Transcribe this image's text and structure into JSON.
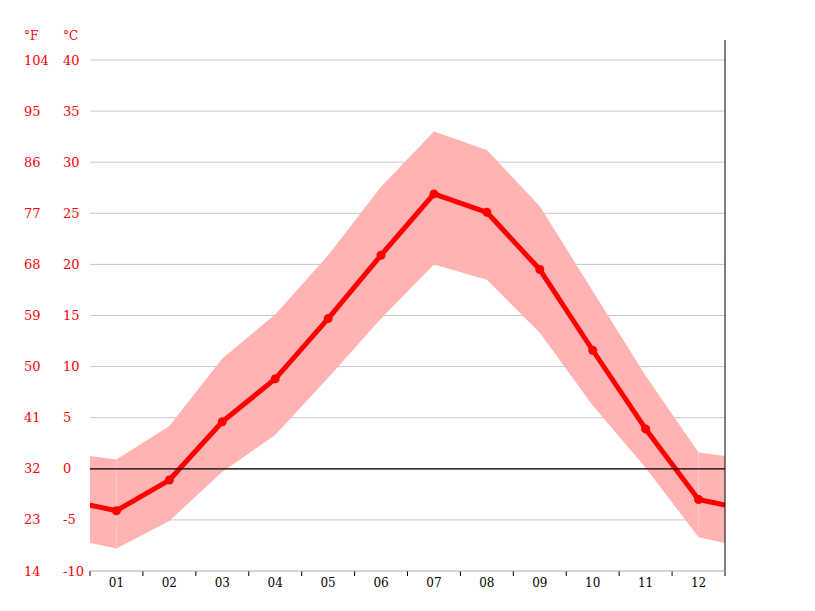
{
  "chart_data": {
    "type": "line",
    "y_label": "°C",
    "y2_label": "°F",
    "categories": [
      "01",
      "02",
      "03",
      "04",
      "05",
      "06",
      "07",
      "08",
      "09",
      "10",
      "11",
      "12"
    ],
    "series": [
      {
        "type": "line",
        "color": "#ff0000",
        "marker": "circle",
        "values": [
          -4.1,
          -1.1,
          4.6,
          8.8,
          14.7,
          20.9,
          26.9,
          25.1,
          19.5,
          11.6,
          3.9,
          -3.0
        ]
      },
      {
        "type": "band",
        "color": "#ffb3b3",
        "values": [
          0.9,
          4.2,
          10.8,
          15.1,
          20.9,
          27.6,
          33.0,
          31.2,
          25.7,
          17.4,
          9.1,
          1.6
        ],
        "low": [
          -7.8,
          -5.1,
          -0.3,
          3.3,
          8.9,
          14.7,
          20.0,
          18.5,
          13.3,
          6.2,
          0.1,
          -6.7
        ]
      }
    ],
    "ylim": [
      -10,
      40
    ],
    "yticks": [
      -10,
      -5,
      0,
      5,
      10,
      15,
      20,
      25,
      30,
      35,
      40
    ],
    "y2lim": [
      14,
      104
    ],
    "y2ticks": [
      14,
      23,
      32,
      41,
      50,
      59,
      68,
      77,
      86,
      95,
      104
    ],
    "grid": true
  }
}
